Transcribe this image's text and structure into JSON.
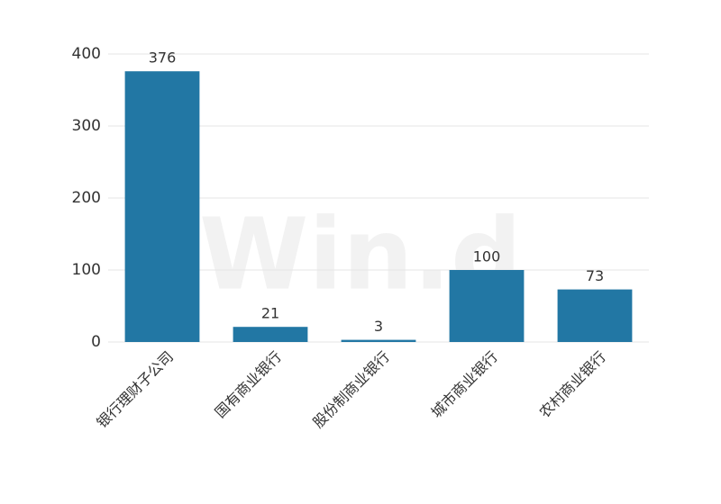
{
  "chart_data": {
    "type": "bar",
    "watermark": "Win.d",
    "categories": [
      "银行理财子公司",
      "国有商业银行",
      "股份制商业银行",
      "城市商业银行",
      "农村商业银行"
    ],
    "values": [
      376,
      21,
      3,
      100,
      73
    ],
    "color": "#2277a4",
    "ylim": [
      0,
      400
    ],
    "yticks": [
      0,
      100,
      200,
      300,
      400
    ],
    "grid": true
  }
}
